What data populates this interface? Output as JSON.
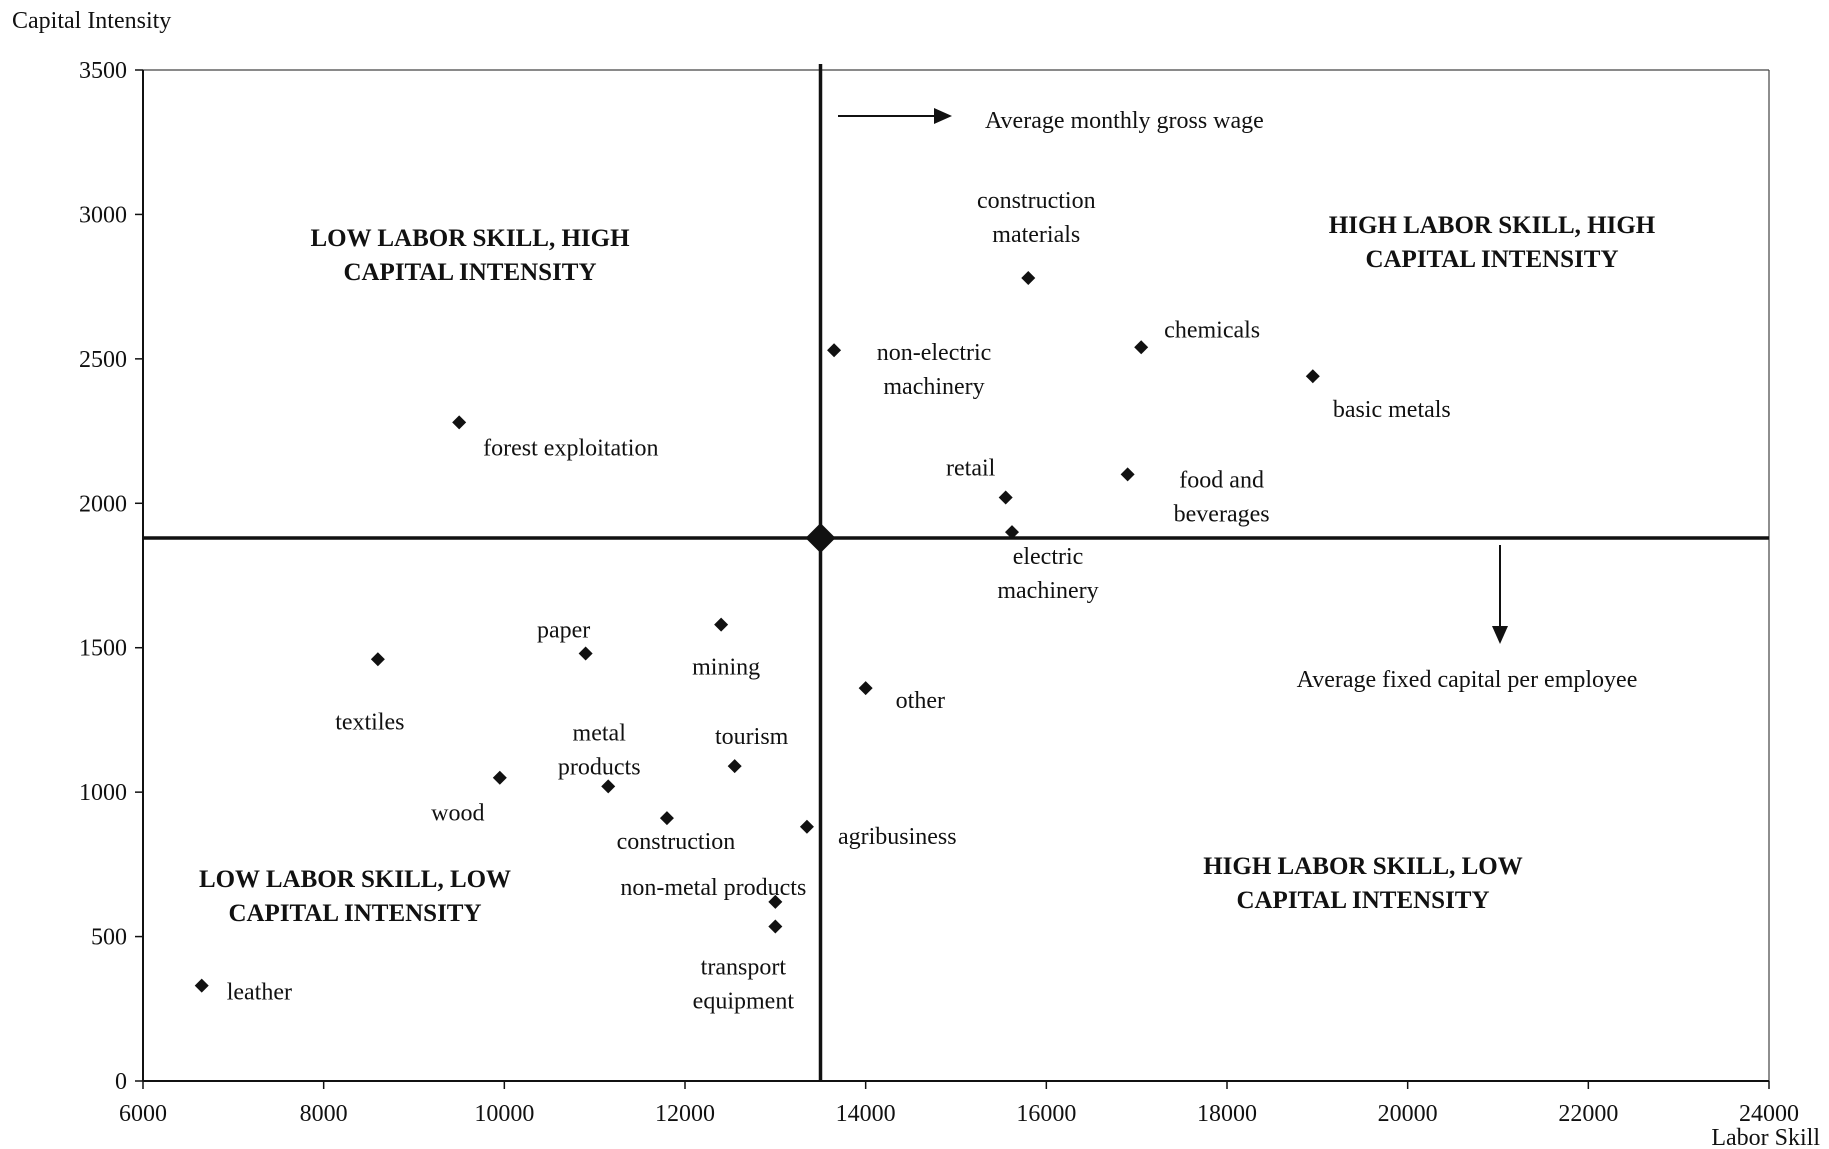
{
  "chart_data": {
    "type": "scatter",
    "ylabel": "Capital Intensity",
    "xlabel": "Labor Skill",
    "xlim": [
      6000,
      24000
    ],
    "ylim": [
      0,
      3500
    ],
    "x_ticks": [
      6000,
      8000,
      10000,
      12000,
      14000,
      16000,
      18000,
      20000,
      22000,
      24000
    ],
    "y_ticks": [
      0,
      500,
      1000,
      1500,
      2000,
      2500,
      3000,
      3500
    ],
    "grid": false,
    "legend": "none",
    "points": [
      {
        "label": "construction materials",
        "x": 15800,
        "y": 2780
      },
      {
        "label": "non-electric machinery",
        "x": 13650,
        "y": 2530
      },
      {
        "label": "chemicals",
        "x": 17050,
        "y": 2540
      },
      {
        "label": "basic metals",
        "x": 18950,
        "y": 2440
      },
      {
        "label": "forest exploitation",
        "x": 9500,
        "y": 2280
      },
      {
        "label": "retail",
        "x": 15550,
        "y": 2020
      },
      {
        "label": "food and beverages",
        "x": 16900,
        "y": 2100
      },
      {
        "label": "electric machinery",
        "x": 15620,
        "y": 1900
      },
      {
        "label": "paper",
        "x": 10900,
        "y": 1480
      },
      {
        "label": "mining",
        "x": 12400,
        "y": 1580
      },
      {
        "label": "textiles",
        "x": 8600,
        "y": 1460
      },
      {
        "label": "other",
        "x": 14000,
        "y": 1360
      },
      {
        "label": "tourism",
        "x": 12550,
        "y": 1090
      },
      {
        "label": "wood",
        "x": 9950,
        "y": 1050
      },
      {
        "label": "metal products",
        "x": 11150,
        "y": 1020
      },
      {
        "label": "construction",
        "x": 11800,
        "y": 910
      },
      {
        "label": "agribusiness",
        "x": 13350,
        "y": 880
      },
      {
        "label": "non-metal products",
        "x": 13000,
        "y": 620
      },
      {
        "label": "transport equipment",
        "x": 13000,
        "y": 535
      },
      {
        "label": "leather",
        "x": 6650,
        "y": 330
      }
    ],
    "average_point": {
      "x": 13500,
      "y": 1880
    },
    "quadrant_labels": {
      "top_left": [
        "LOW LABOR SKILL, HIGH",
        "CAPITAL INTENSITY"
      ],
      "top_right": [
        "HIGH LABOR SKILL, HIGH",
        "CAPITAL INTENSITY"
      ],
      "bottom_left": [
        "LOW LABOR SKILL, LOW",
        "CAPITAL INTENSITY"
      ],
      "bottom_right": [
        "HIGH LABOR SKILL, LOW",
        "CAPITAL INTENSITY"
      ]
    },
    "annotations": {
      "x_axis_meaning": "Average monthly gross wage",
      "y_axis_meaning": "Average fixed capital per employee"
    }
  }
}
